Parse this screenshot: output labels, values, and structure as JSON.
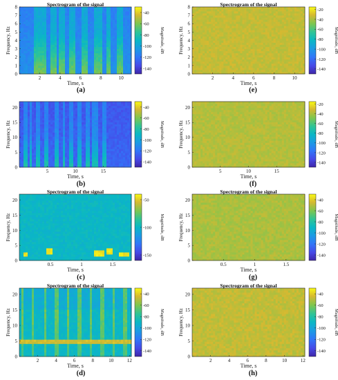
{
  "figure": {
    "panels": [
      {
        "id": "a",
        "letter": "(a)",
        "title": "Spectrogram of the signal",
        "xlabel": "Time, s",
        "ylabel": "Frequency, Hz",
        "cbar_label": "Magnitude, dB",
        "xticks": [
          "2",
          "4",
          "6",
          "8",
          "10"
        ],
        "yticks": [
          "0",
          "1",
          "2",
          "3",
          "4",
          "5",
          "6",
          "7",
          "8"
        ],
        "cticks": [
          "-40",
          "-60",
          "-80",
          "-100",
          "-120",
          "-140"
        ]
      },
      {
        "id": "b",
        "letter": "(b)",
        "title": "",
        "xlabel": "Time, s",
        "ylabel": "Frequency, Hz",
        "cbar_label": "Magnitude, dB",
        "xticks": [
          "5",
          "10",
          "15"
        ],
        "yticks": [
          "0",
          "5",
          "10",
          "15",
          "20"
        ],
        "cticks": [
          "-40",
          "-60",
          "-80",
          "-100",
          "-120",
          "-140"
        ]
      },
      {
        "id": "c",
        "letter": "(c)",
        "title": "Spectrogram of the signal",
        "xlabel": "Time, s",
        "ylabel": "Frequency, Hz",
        "cbar_label": "Magnitude, dB",
        "xticks": [
          "0.5",
          "1",
          "1.5"
        ],
        "yticks": [
          "0",
          "5",
          "10",
          "15",
          "20"
        ],
        "cticks": [
          "-50",
          "-100",
          "-150"
        ]
      },
      {
        "id": "d",
        "letter": "(d)",
        "title": "Spectrogram of the signal",
        "xlabel": "Time, s",
        "ylabel": "Frequency, Hz",
        "cbar_label": "Magnitude, dB",
        "xticks": [
          "2",
          "4",
          "6",
          "8",
          "10",
          "12"
        ],
        "yticks": [
          "0",
          "5",
          "10",
          "15",
          "20"
        ],
        "cticks": [
          "-40",
          "-60",
          "-80",
          "-100",
          "-120",
          "-140"
        ]
      },
      {
        "id": "e",
        "letter": "(e)",
        "title": "Spectrogram of the signal",
        "xlabel": "Time, s",
        "ylabel": "Frequency, Hz",
        "cbar_label": "Magnitude, dB",
        "xticks": [
          "2",
          "4",
          "6",
          "8",
          "10"
        ],
        "yticks": [
          "0",
          "1",
          "2",
          "3",
          "4",
          "5",
          "6",
          "7",
          "8"
        ],
        "cticks": [
          "-20",
          "-40",
          "-60",
          "-80",
          "-100",
          "-120",
          "-140"
        ]
      },
      {
        "id": "f",
        "letter": "(f)",
        "title": "",
        "xlabel": "Time, s",
        "ylabel": "Frequency, Hz",
        "cbar_label": "Magnitude, dB",
        "xticks": [
          "5",
          "10",
          "15"
        ],
        "yticks": [
          "0",
          "5",
          "10",
          "15",
          "20"
        ],
        "cticks": [
          "-20",
          "-40",
          "-60",
          "-80",
          "-100",
          "-120",
          "-140"
        ]
      },
      {
        "id": "g",
        "letter": "(g)",
        "title": "Spectrogram of the signal",
        "xlabel": "Time, s",
        "ylabel": "Frequency, Hz",
        "cbar_label": "Magnitude, dB",
        "xticks": [
          "0.5",
          "1",
          "1.5"
        ],
        "yticks": [
          "0",
          "5",
          "10",
          "15",
          "20"
        ],
        "cticks": [
          "-40",
          "-60",
          "-80",
          "-100",
          "-120",
          "-140"
        ]
      },
      {
        "id": "h",
        "letter": "(h)",
        "title": "Spectrogram of the signal",
        "xlabel": "Time, s",
        "ylabel": "Frequency, Hz",
        "cbar_label": "Magnitude, dB",
        "xticks": [
          "2",
          "4",
          "6",
          "8",
          "10",
          "12"
        ],
        "yticks": [
          "0",
          "5",
          "10",
          "15",
          "20"
        ],
        "cticks": [
          "-40",
          "-60",
          "-80",
          "-100",
          "-120",
          "-140"
        ]
      }
    ]
  },
  "chart_data": [
    {
      "panel": "a",
      "type": "heatmap",
      "title": "Spectrogram of the signal",
      "xlabel": "Time, s",
      "ylabel": "Frequency, Hz",
      "colorbar_label": "Magnitude, dB",
      "xlim": [
        0,
        11
      ],
      "ylim": [
        0,
        8
      ],
      "clim": [
        -150,
        -30
      ],
      "xticks": [
        2,
        4,
        6,
        8,
        10
      ],
      "yticks": [
        0,
        1,
        2,
        3,
        4,
        5,
        6,
        7,
        8
      ],
      "cticks": [
        -40,
        -60,
        -80,
        -100,
        -120,
        -140
      ],
      "colormap": "parula",
      "background_db": -110,
      "bursts": [
        [
          1.5,
          2.6
        ],
        [
          3.0,
          3.6
        ],
        [
          3.9,
          4.4
        ],
        [
          4.9,
          5.6
        ],
        [
          6.2,
          6.8
        ],
        [
          7.3,
          8.1
        ],
        [
          8.5,
          9.0
        ],
        [
          9.5,
          10.2
        ]
      ],
      "burst_db": -60,
      "burst_max_freq_hz": 5
    },
    {
      "panel": "b",
      "type": "heatmap",
      "title": "",
      "xlabel": "Time, s",
      "ylabel": "Frequency, Hz",
      "colorbar_label": "Magnitude, dB",
      "xlim": [
        0,
        20
      ],
      "ylim": [
        0,
        22
      ],
      "clim": [
        -150,
        -30
      ],
      "xticks": [
        5,
        10,
        15
      ],
      "yticks": [
        0,
        5,
        10,
        15,
        20
      ],
      "cticks": [
        -40,
        -60,
        -80,
        -100,
        -120,
        -140
      ],
      "colormap": "parula",
      "background_db": -125,
      "bursts": [
        [
          0.8,
          1.4
        ],
        [
          1.8,
          2.4
        ],
        [
          2.9,
          3.6
        ],
        [
          4.5,
          5.2
        ],
        [
          6.2,
          7.0
        ],
        [
          7.8,
          8.3
        ],
        [
          9.0,
          9.8
        ],
        [
          10.5,
          11.2
        ],
        [
          11.8,
          12.5
        ],
        [
          13.1,
          13.9
        ],
        [
          14.8,
          15.5
        ]
      ],
      "burst_db": -80,
      "burst_max_freq_hz": 11
    },
    {
      "panel": "c",
      "type": "heatmap",
      "title": "Spectrogram of the signal",
      "xlabel": "Time, s",
      "ylabel": "Frequency, Hz",
      "colorbar_label": "Magnitude, dB",
      "xlim": [
        0,
        1.8
      ],
      "ylim": [
        0,
        22
      ],
      "clim": [
        -160,
        -40
      ],
      "xticks": [
        0.5,
        1,
        1.5
      ],
      "yticks": [
        0,
        5,
        10,
        15,
        20
      ],
      "cticks": [
        -50,
        -100,
        -150
      ],
      "colormap": "parula",
      "background_db": -100,
      "tones": [
        {
          "t": [
            0.05,
            0.12
          ],
          "f": 2
        },
        {
          "t": [
            0.42,
            0.52
          ],
          "f": 3
        },
        {
          "t": [
            1.2,
            1.35
          ],
          "f": 2.5
        },
        {
          "t": [
            1.4,
            1.5
          ],
          "f": 3
        },
        {
          "t": [
            1.6,
            1.75
          ],
          "f": 2
        }
      ],
      "tone_db": -45
    },
    {
      "panel": "d",
      "type": "heatmap",
      "title": "Spectrogram of the signal",
      "xlabel": "Time, s",
      "ylabel": "Frequency, Hz",
      "colorbar_label": "Magnitude, dB",
      "xlim": [
        0,
        12.2
      ],
      "ylim": [
        0,
        22
      ],
      "clim": [
        -150,
        -30
      ],
      "xticks": [
        2,
        4,
        6,
        8,
        10,
        12
      ],
      "yticks": [
        0,
        5,
        10,
        15,
        20
      ],
      "cticks": [
        -40,
        -60,
        -80,
        -100,
        -120,
        -140
      ],
      "colormap": "parula",
      "background_db": -90,
      "pulses": [
        0.3,
        1.5,
        2.8,
        4.0,
        5.3,
        6.5,
        7.8,
        9.0,
        10.3,
        11.5
      ],
      "pulse_db": -70,
      "tone_freq_hz": 5,
      "tone_db": -45
    },
    {
      "panel": "e",
      "type": "heatmap",
      "title": "Spectrogram of the signal",
      "xlabel": "Time, s",
      "ylabel": "Frequency, Hz",
      "colorbar_label": "Magnitude, dB",
      "xlim": [
        0,
        11
      ],
      "ylim": [
        0,
        8
      ],
      "clim": [
        -150,
        -15
      ],
      "xticks": [
        2,
        4,
        6,
        8,
        10
      ],
      "yticks": [
        0,
        1,
        2,
        3,
        4,
        5,
        6,
        7,
        8
      ],
      "cticks": [
        -20,
        -40,
        -60,
        -80,
        -100,
        -120,
        -140
      ],
      "colormap": "parula",
      "background_db": -35
    },
    {
      "panel": "f",
      "type": "heatmap",
      "title": "",
      "xlabel": "Time, s",
      "ylabel": "Frequency, Hz",
      "colorbar_label": "Magnitude, dB",
      "xlim": [
        0,
        20
      ],
      "ylim": [
        0,
        22
      ],
      "clim": [
        -150,
        -15
      ],
      "xticks": [
        5,
        10,
        15
      ],
      "yticks": [
        0,
        5,
        10,
        15,
        20
      ],
      "cticks": [
        -20,
        -40,
        -60,
        -80,
        -100,
        -120,
        -140
      ],
      "colormap": "parula",
      "background_db": -38
    },
    {
      "panel": "g",
      "type": "heatmap",
      "title": "Spectrogram of the signal",
      "xlabel": "Time, s",
      "ylabel": "Frequency, Hz",
      "colorbar_label": "Magnitude, dB",
      "xlim": [
        0,
        1.8
      ],
      "ylim": [
        0,
        22
      ],
      "clim": [
        -150,
        -30
      ],
      "xticks": [
        0.5,
        1,
        1.5
      ],
      "yticks": [
        0,
        5,
        10,
        15,
        20
      ],
      "cticks": [
        -40,
        -60,
        -80,
        -100,
        -120,
        -140
      ],
      "colormap": "parula",
      "background_db": -52
    },
    {
      "panel": "h",
      "type": "heatmap",
      "title": "Spectrogram of the signal",
      "xlabel": "Time, s",
      "ylabel": "Frequency, Hz",
      "colorbar_label": "Magnitude, dB",
      "xlim": [
        0,
        12.2
      ],
      "ylim": [
        0,
        22
      ],
      "clim": [
        -150,
        -30
      ],
      "xticks": [
        2,
        4,
        6,
        8,
        10,
        12
      ],
      "yticks": [
        0,
        5,
        10,
        15,
        20
      ],
      "cticks": [
        -40,
        -60,
        -80,
        -100,
        -120,
        -140
      ],
      "colormap": "parula",
      "background_db": -48
    }
  ]
}
